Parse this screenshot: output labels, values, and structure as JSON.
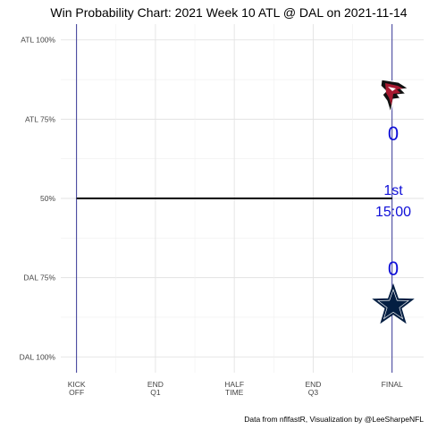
{
  "chart_data": {
    "type": "line",
    "title": "Win Probability Chart: 2021 Week 10 ATL @ DAL on 2021-11-14",
    "caption": "Data from nflfastR, Visualization by @LeeSharpeNFL",
    "y_ticks": [
      {
        "value": 100,
        "label": "ATL 100%"
      },
      {
        "value": 75,
        "label": "ATL 75%"
      },
      {
        "value": 50,
        "label": "50%"
      },
      {
        "value": 25,
        "label": "DAL 75%"
      },
      {
        "value": 0,
        "label": "DAL 100%"
      }
    ],
    "x_ticks": [
      {
        "value": 0,
        "line1": "KICK",
        "line2": "OFF"
      },
      {
        "value": 15,
        "line1": "END",
        "line2": "Q1"
      },
      {
        "value": 30,
        "line1": "HALF",
        "line2": "TIME"
      },
      {
        "value": 45,
        "line1": "END",
        "line2": "Q3"
      },
      {
        "value": 60,
        "line1": "FINAL",
        "line2": ""
      }
    ],
    "xlim": [
      -3,
      66
    ],
    "ylim": [
      -5,
      105
    ],
    "grid": true,
    "series": [
      {
        "x": [
          0,
          60
        ],
        "y": [
          50,
          50
        ],
        "color": "#000000"
      }
    ],
    "vlines": [
      0,
      60
    ],
    "vline_color": "#27278f",
    "line_color": "#000000",
    "text_color": "#1010d8",
    "annotations": {
      "away_score": "0",
      "home_score": "0",
      "quarter": "1st",
      "clock": "15:00"
    },
    "away_team": {
      "abbr": "ATL",
      "logo": "falcons-logo",
      "color": "#a71930"
    },
    "home_team": {
      "abbr": "DAL",
      "logo": "cowboys-star-logo",
      "color": "#041e42"
    }
  }
}
